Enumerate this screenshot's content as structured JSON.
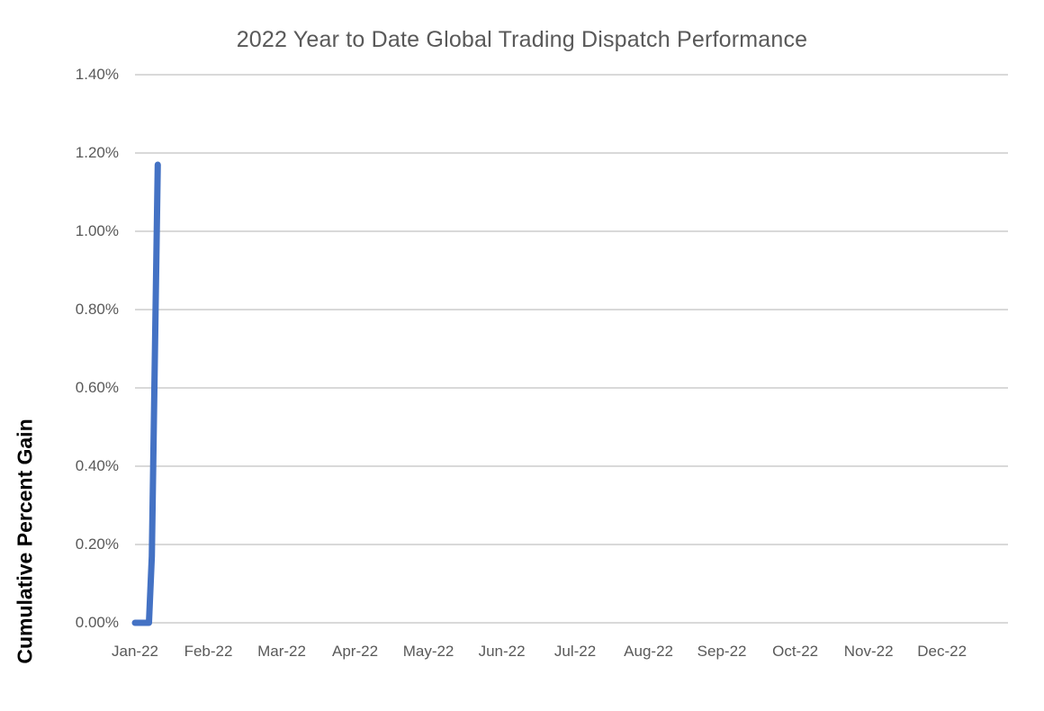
{
  "chart_data": {
    "type": "line",
    "title": "2022 Year to Date Global Trading Dispatch Performance",
    "xlabel": "",
    "ylabel": "Cumulative Percent Gain",
    "legend": "none",
    "grid": "horizontal",
    "ylim": [
      0,
      1.4
    ],
    "xlim_months": [
      0,
      11.9
    ],
    "y_ticks": [
      {
        "value": 0.0,
        "label": "0.00%"
      },
      {
        "value": 0.2,
        "label": "0.20%"
      },
      {
        "value": 0.4,
        "label": "0.40%"
      },
      {
        "value": 0.6,
        "label": "0.60%"
      },
      {
        "value": 0.8,
        "label": "0.80%"
      },
      {
        "value": 1.0,
        "label": "1.00%"
      },
      {
        "value": 1.2,
        "label": "1.20%"
      },
      {
        "value": 1.4,
        "label": "1.40%"
      }
    ],
    "x_tick_labels": [
      "Jan-22",
      "Feb-22",
      "Mar-22",
      "Apr-22",
      "May-22",
      "Jun-22",
      "Jul-22",
      "Aug-22",
      "Sep-22",
      "Oct-22",
      "Nov-22",
      "Dec-22"
    ],
    "series": [
      {
        "name": "Cumulative Percent Gain",
        "point_format": "[months_after_jan_2022, cumulative_percent_gain]",
        "points": [
          [
            0.0,
            0.0
          ],
          [
            0.19,
            0.0
          ],
          [
            0.23,
            0.17
          ],
          [
            0.31,
            1.17
          ]
        ],
        "peak_value_pct": 1.17
      }
    ],
    "line_color": "#4472C4",
    "gridline_color": "#D9D9D9",
    "tick_label_color": "#595959",
    "title_color": "#595959",
    "axis_title_color": "#000000"
  }
}
